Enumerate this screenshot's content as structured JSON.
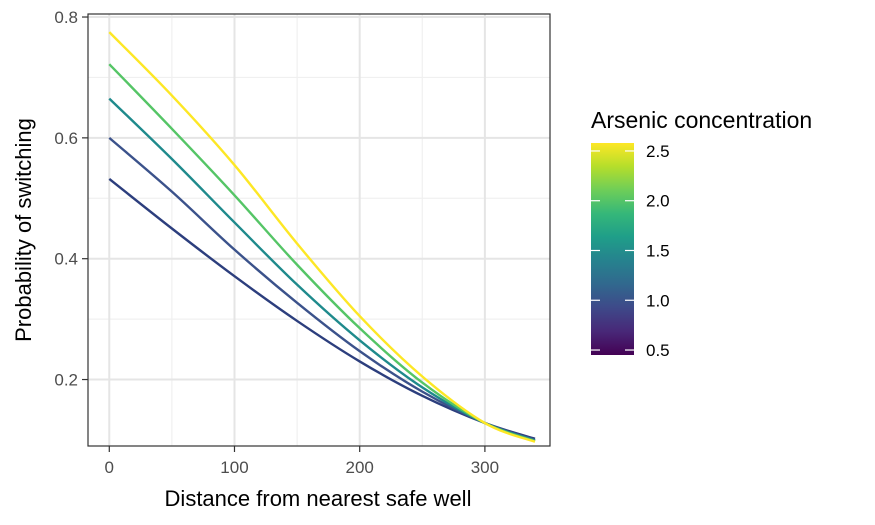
{
  "chart_data": {
    "type": "line",
    "title": "",
    "xlabel": "Distance from nearest safe well",
    "ylabel": "Probability of switching",
    "xlim": [
      -17,
      352
    ],
    "ylim": [
      0.09,
      0.805
    ],
    "x_ticks": [
      0,
      100,
      200,
      300
    ],
    "x_minor_ticks": [
      50,
      150,
      250
    ],
    "y_ticks": [
      0.2,
      0.4,
      0.6,
      0.8
    ],
    "y_minor_ticks": [
      0.3,
      0.5,
      0.7
    ],
    "x_tick_labels": [
      "0",
      "100",
      "200",
      "300"
    ],
    "y_tick_labels": [
      "0.2",
      "0.4",
      "0.6",
      "0.8"
    ],
    "grid": true,
    "x": [
      0,
      50,
      100,
      150,
      200,
      250,
      300,
      340
    ],
    "series": [
      {
        "arsenic": 0.5,
        "color": "#440154",
        "values": [
          0.532,
          0.45,
          0.371,
          0.297,
          0.23,
          0.173,
          0.128,
          0.102
        ]
      },
      {
        "arsenic": 1.0,
        "color": "#31688e",
        "values": [
          0.6,
          0.511,
          0.415,
          0.327,
          0.247,
          0.18,
          0.128,
          0.1
        ]
      },
      {
        "arsenic": 1.5,
        "color": "#21908d",
        "values": [
          0.665,
          0.565,
          0.46,
          0.357,
          0.265,
          0.187,
          0.128,
          0.099
        ]
      },
      {
        "arsenic": 2.0,
        "color": "#5dc863",
        "values": [
          0.722,
          0.615,
          0.505,
          0.39,
          0.285,
          0.195,
          0.128,
          0.098
        ]
      },
      {
        "arsenic": 2.5,
        "color": "#fde725",
        "values": [
          0.775,
          0.67,
          0.555,
          0.425,
          0.305,
          0.205,
          0.128,
          0.097
        ]
      }
    ],
    "line_colors": [
      "#2c3e7d",
      "#3b528b",
      "#1f8a8c",
      "#55c566",
      "#fde725"
    ],
    "legend": {
      "title": "Arsenic concentration",
      "placement": "right",
      "min": 0.45,
      "max": 2.58,
      "ticks": [
        0.5,
        1.0,
        1.5,
        2.0,
        2.5
      ],
      "tick_labels": [
        "0.5",
        "1.0",
        "1.5",
        "2.0",
        "2.5"
      ],
      "colors": [
        "#440154",
        "#482878",
        "#3e4989",
        "#31688e",
        "#26828e",
        "#1f9e89",
        "#35b779",
        "#6ece58",
        "#b5de2b",
        "#fde725"
      ]
    }
  }
}
